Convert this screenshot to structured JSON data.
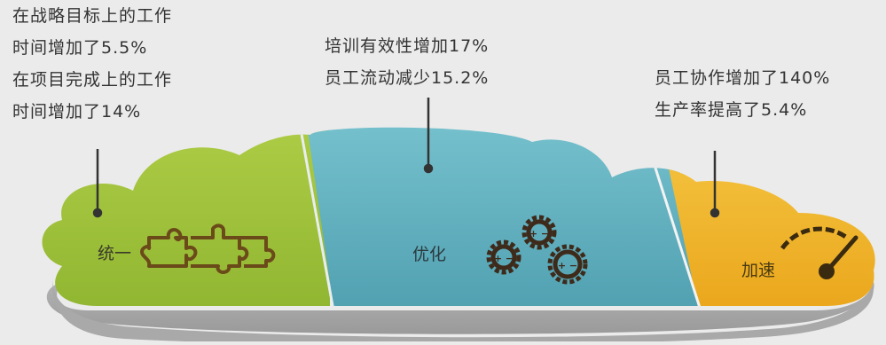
{
  "sections": [
    {
      "id": "unify",
      "label": "统一",
      "icon": "puzzle-icon",
      "color": "#9dc23a",
      "annotation": [
        "在战略目标上的工作",
        "时间增加了5.5%",
        "在项目完成上的工作",
        "时间增加了14%"
      ]
    },
    {
      "id": "optimize",
      "label": "优化",
      "icon": "gears-icon",
      "color": "#5fb0c0",
      "annotation": [
        "培训有效性增加17%",
        "员工流动减少15.2%"
      ]
    },
    {
      "id": "accelerate",
      "label": "加速",
      "icon": "speedometer-icon",
      "color": "#f0b424",
      "annotation": [
        "员工协作增加了140%",
        "生产率提高了5.4%"
      ]
    }
  ]
}
